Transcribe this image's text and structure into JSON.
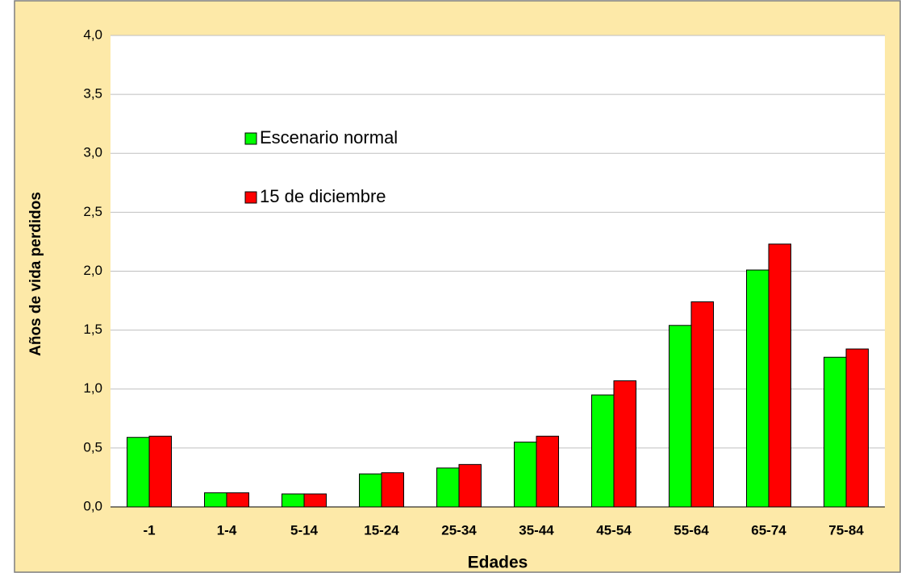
{
  "chart_data": {
    "type": "bar",
    "categories": [
      "-1",
      "1-4",
      "5-14",
      "15-24",
      "25-34",
      "35-44",
      "45-54",
      "55-64",
      "65-74",
      "75-84"
    ],
    "series": [
      {
        "name": "Escenario normal",
        "color": "#00ff00",
        "values": [
          0.59,
          0.12,
          0.11,
          0.28,
          0.33,
          0.55,
          0.95,
          1.54,
          2.01,
          1.27
        ]
      },
      {
        "name": "15 de diciembre",
        "color": "#ff0000",
        "values": [
          0.6,
          0.12,
          0.11,
          0.29,
          0.36,
          0.6,
          1.07,
          1.74,
          2.23,
          1.34
        ]
      }
    ],
    "xlabel": "Edades",
    "ylabel": "Años de vida perdidos",
    "ylim": [
      0,
      4
    ],
    "yticks": [
      {
        "value": 0,
        "label": "0,0"
      },
      {
        "value": 0.5,
        "label": "0,5"
      },
      {
        "value": 1,
        "label": "1,0"
      },
      {
        "value": 1.5,
        "label": "1,5"
      },
      {
        "value": 2,
        "label": "2,0"
      },
      {
        "value": 2.5,
        "label": "2,5"
      },
      {
        "value": 3,
        "label": "3,0"
      },
      {
        "value": 3.5,
        "label": "3,5"
      },
      {
        "value": 4,
        "label": "4,0"
      }
    ],
    "grid": true
  }
}
